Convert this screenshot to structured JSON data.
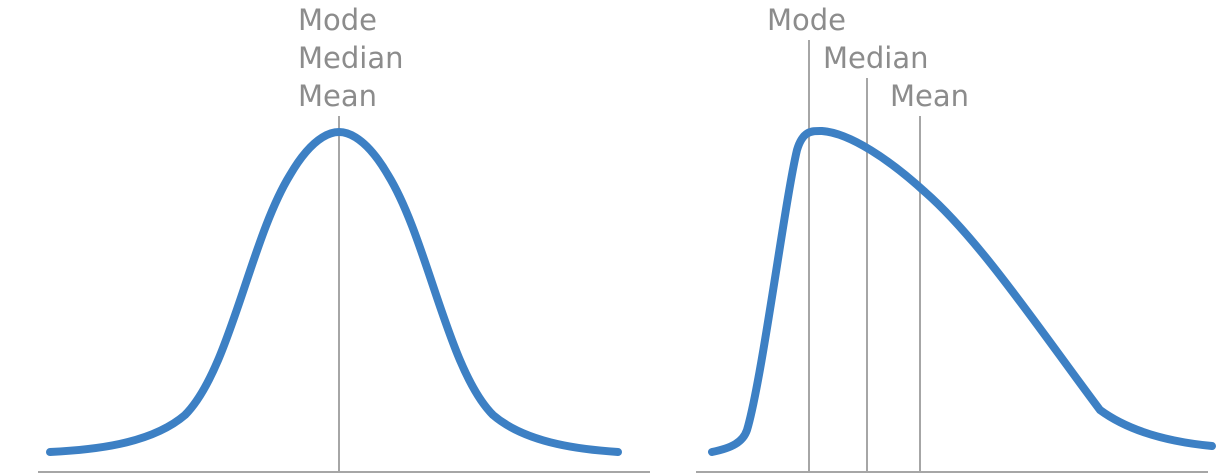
{
  "panels": [
    {
      "distribution": "symmetric",
      "labels": {
        "mode": "Mode",
        "median": "Median",
        "mean": "Mean"
      }
    },
    {
      "distribution": "right-skewed",
      "labels": {
        "mode": "Mode",
        "median": "Median",
        "mean": "Mean"
      }
    }
  ],
  "colors": {
    "curve": "#3d80c4",
    "reference_line": "#a6a6a6",
    "axis": "#a6a6a6",
    "label_text": "#8c8c8c"
  }
}
